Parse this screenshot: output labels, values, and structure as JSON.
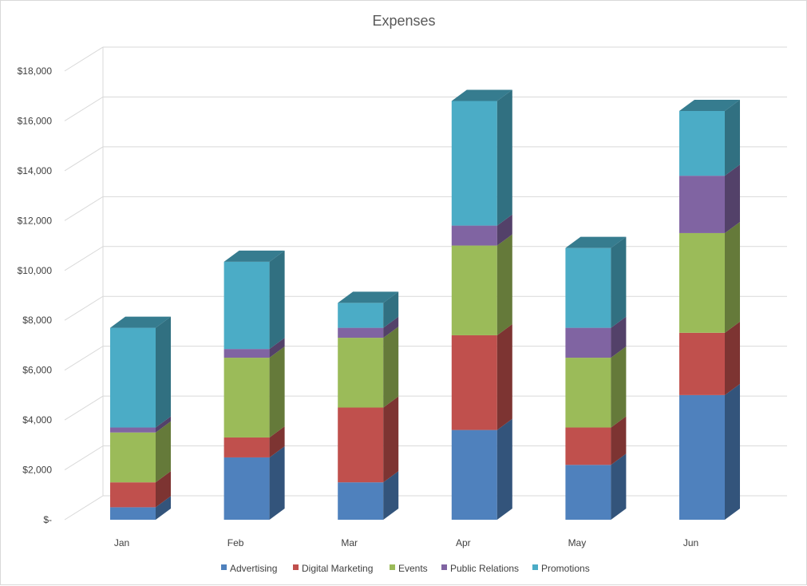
{
  "chart_data": {
    "type": "bar",
    "stacked": true,
    "three_d": true,
    "title": "Expenses",
    "categories": [
      "Jan",
      "Feb",
      "Mar",
      "Apr",
      "May",
      "Jun"
    ],
    "series": [
      {
        "name": "Advertising",
        "color": "#4f81bd",
        "values": [
          500,
          2500,
          1500,
          3600,
          2200,
          5000
        ]
      },
      {
        "name": "Digital Marketing",
        "color": "#c0504d",
        "values": [
          1000,
          800,
          3000,
          3800,
          1500,
          2500
        ]
      },
      {
        "name": "Events",
        "color": "#9bbb59",
        "values": [
          2000,
          3200,
          2800,
          3600,
          2800,
          4000
        ]
      },
      {
        "name": "Public Relations",
        "color": "#8064a2",
        "values": [
          200,
          350,
          400,
          800,
          1200,
          2300
        ]
      },
      {
        "name": "Promotions",
        "color": "#4bacc6",
        "values": [
          4000,
          3500,
          1000,
          5000,
          3200,
          2600
        ]
      }
    ],
    "ylim": [
      0,
      18000
    ],
    "yticks": [
      "$-",
      "$2,000",
      "$4,000",
      "$6,000",
      "$8,000",
      "$10,000",
      "$12,000",
      "$14,000",
      "$16,000",
      "$18,000"
    ],
    "grid": true,
    "legend": "bottom"
  }
}
